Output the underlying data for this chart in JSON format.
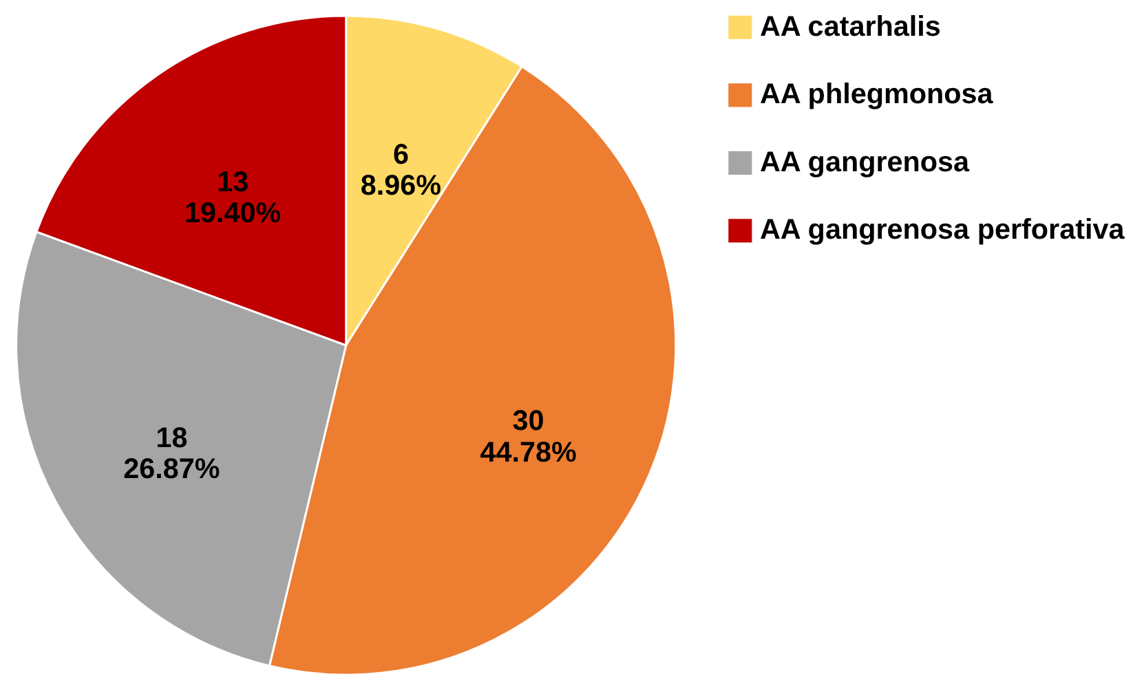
{
  "chart_data": {
    "type": "pie",
    "categories": [
      "AA  catarhalis",
      "AA phlegmonosa",
      "AA gangrenosa",
      "AA gangrenosa perforativa"
    ],
    "values": [
      6,
      30,
      18,
      13
    ],
    "colors": [
      "#ffd966",
      "#ed7d31",
      "#a5a5a5",
      "#c00000"
    ],
    "value_labels": [
      "6\n8.96%",
      "30\n44.78%",
      "18\n26.87%",
      "13\n19.40%"
    ],
    "legend": "right"
  }
}
